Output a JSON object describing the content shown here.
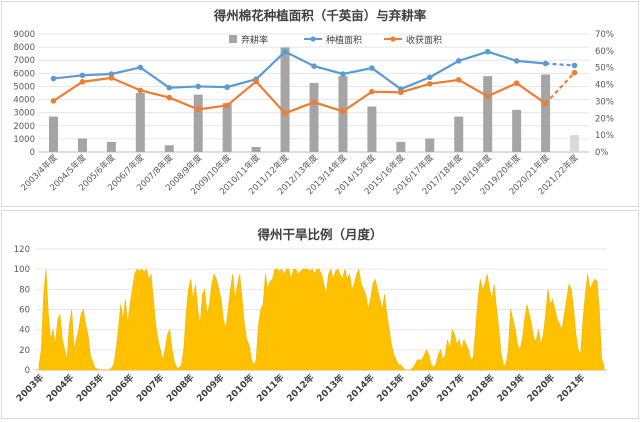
{
  "chart_data": [
    {
      "type": "bar+line",
      "title": "得州棉花种植面积（千英亩）与弃耕率",
      "categories": [
        "2003/4年度",
        "2004/5年度",
        "2005/6年度",
        "2006/7年度",
        "2007/8年度",
        "2008/9年度",
        "2009/10年度",
        "2010/11年度",
        "2011/12年度",
        "2012/13年度",
        "2013/14年度",
        "2014/15年度",
        "2015/16年度",
        "2016/17年度",
        "2017/18年度",
        "2018/19年度",
        "2019/20年度",
        "2020/21年度",
        "2021/22年度"
      ],
      "y_left_ticks": [
        "0",
        "1000",
        "2000",
        "3000",
        "4000",
        "5000",
        "6000",
        "7000",
        "8000",
        "9000"
      ],
      "y_right_ticks": [
        "0%",
        "10%",
        "20%",
        "30%",
        "40%",
        "50%",
        "60%",
        "70%"
      ],
      "ylim_left": [
        0,
        9000
      ],
      "ylim_right": [
        0,
        0.7
      ],
      "legend_position": "top-right",
      "series": [
        {
          "name": "弃耕率",
          "kind": "bar",
          "axis": "right",
          "color": "#a5a5a5",
          "projected_color": "#d9d9d9",
          "values": [
            0.21,
            0.08,
            0.06,
            0.35,
            0.04,
            0.34,
            0.29,
            0.03,
            0.62,
            0.41,
            0.45,
            0.27,
            0.06,
            0.08,
            0.21,
            0.45,
            0.25,
            0.46,
            0.1
          ]
        },
        {
          "name": "种植面积",
          "kind": "line",
          "axis": "left",
          "color": "#5b9bd5",
          "values": [
            5600,
            5850,
            5950,
            6450,
            4900,
            5000,
            4950,
            5550,
            7650,
            6550,
            5950,
            6400,
            4800,
            5700,
            6950,
            7650,
            6950,
            6750,
            6600
          ],
          "dashed_last": true
        },
        {
          "name": "收获面积",
          "kind": "line",
          "axis": "left",
          "color": "#ed7d31",
          "values": [
            3900,
            5350,
            5650,
            4700,
            4150,
            3250,
            3550,
            5380,
            2950,
            3800,
            3100,
            4600,
            4550,
            5200,
            5500,
            4250,
            5250,
            3700,
            6050
          ],
          "dashed_last": true
        }
      ]
    },
    {
      "type": "area",
      "title": "得州干旱比例（月度）",
      "x_labels": [
        "2003年",
        "2004年",
        "2005年",
        "2006年",
        "2007年",
        "2008年",
        "2009年",
        "2010年",
        "2011年",
        "2012年",
        "2013年",
        "2014年",
        "2015年",
        "2016年",
        "2017年",
        "2018年",
        "2019年",
        "2020年",
        "2021年"
      ],
      "y_ticks": [
        "0",
        "20",
        "40",
        "60",
        "80",
        "100",
        "120"
      ],
      "ylim": [
        0,
        120
      ],
      "color": "#ffc000",
      "values": [
        5,
        20,
        75,
        100,
        55,
        30,
        40,
        25,
        50,
        55,
        30,
        20,
        10,
        45,
        60,
        20,
        30,
        40,
        55,
        60,
        45,
        35,
        15,
        8,
        2,
        1,
        0,
        0,
        0,
        0,
        0,
        2,
        5,
        20,
        40,
        65,
        50,
        70,
        45,
        65,
        80,
        95,
        100,
        98,
        100,
        97,
        100,
        90,
        95,
        70,
        45,
        30,
        20,
        10,
        20,
        35,
        40,
        20,
        8,
        2,
        2,
        5,
        20,
        55,
        80,
        90,
        70,
        85,
        60,
        45,
        75,
        80,
        55,
        65,
        85,
        95,
        90,
        80,
        70,
        50,
        40,
        60,
        80,
        95,
        70,
        85,
        95,
        70,
        45,
        30,
        25,
        10,
        5,
        10,
        45,
        60,
        65,
        95,
        80,
        88,
        90,
        100,
        100,
        98,
        100,
        95,
        100,
        100,
        90,
        100,
        100,
        95,
        98,
        100,
        100,
        100,
        98,
        100,
        95,
        100,
        100,
        95,
        85,
        75,
        95,
        100,
        90,
        98,
        100,
        95,
        90,
        100,
        90,
        95,
        80,
        85,
        95,
        100,
        85,
        80,
        75,
        60,
        70,
        85,
        90,
        80,
        70,
        60,
        75,
        55,
        40,
        25,
        15,
        10,
        5,
        5,
        2,
        0,
        0,
        0,
        2,
        5,
        10,
        10,
        10,
        15,
        20,
        15,
        5,
        3,
        5,
        15,
        20,
        10,
        15,
        30,
        20,
        40,
        35,
        25,
        30,
        20,
        30,
        25,
        20,
        10,
        12,
        40,
        70,
        90,
        80,
        85,
        95,
        80,
        70,
        85,
        60,
        40,
        15,
        5,
        5,
        20,
        60,
        50,
        40,
        25,
        20,
        30,
        50,
        65,
        55,
        45,
        30,
        30,
        40,
        25,
        35,
        55,
        80,
        65,
        70,
        60,
        50,
        45,
        40,
        55,
        70,
        85,
        80,
        60,
        35,
        20,
        15,
        50,
        75,
        95,
        80,
        85,
        90,
        88,
        60,
        10,
        5
      ]
    }
  ]
}
